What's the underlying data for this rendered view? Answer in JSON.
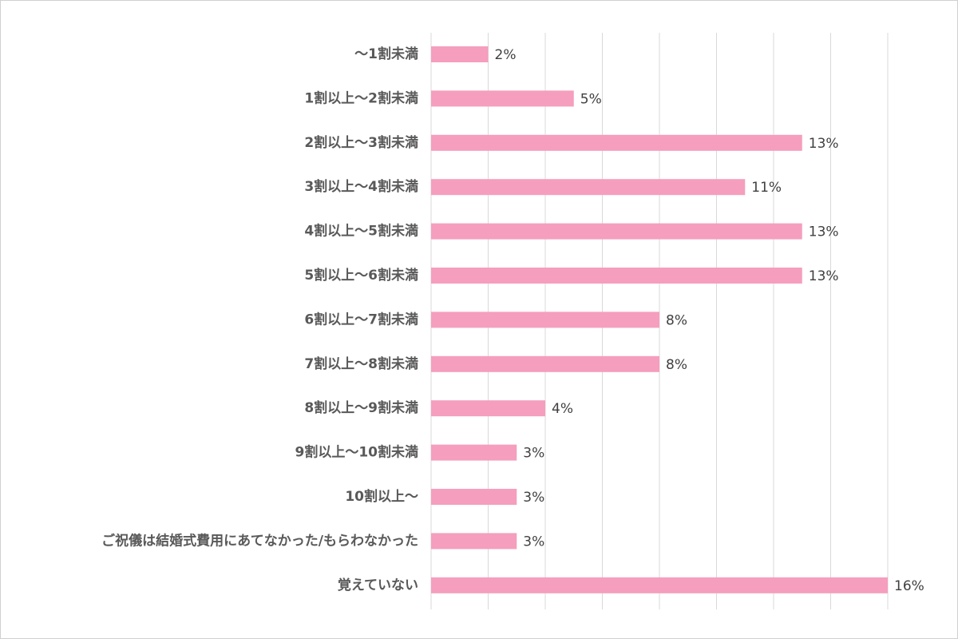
{
  "chart_data": {
    "type": "bar",
    "orientation": "horizontal",
    "title": "",
    "xlabel": "",
    "ylabel": "",
    "xlim": [
      0,
      16
    ],
    "grid": "vertical",
    "bar_color": "#f59ebd",
    "unit": "%",
    "categories": [
      "〜1割未満",
      "1割以上〜2割未満",
      "2割以上〜3割未満",
      "3割以上〜4割未満",
      "4割以上〜5割未満",
      "5割以上〜6割未満",
      "6割以上〜7割未満",
      "7割以上〜8割未満",
      "8割以上〜9割未満",
      "9割以上〜10割未満",
      "10割以上〜",
      "ご祝儀は結婚式費用にあてなかった/もらわなかった",
      "覚えていない"
    ],
    "values": [
      2,
      5,
      13,
      11,
      13,
      13,
      8,
      8,
      4,
      3,
      3,
      3,
      16
    ],
    "value_labels": [
      "2%",
      "5%",
      "13%",
      "11%",
      "13%",
      "13%",
      "8%",
      "8%",
      "4%",
      "3%",
      "3%",
      "3%",
      "16%"
    ]
  }
}
